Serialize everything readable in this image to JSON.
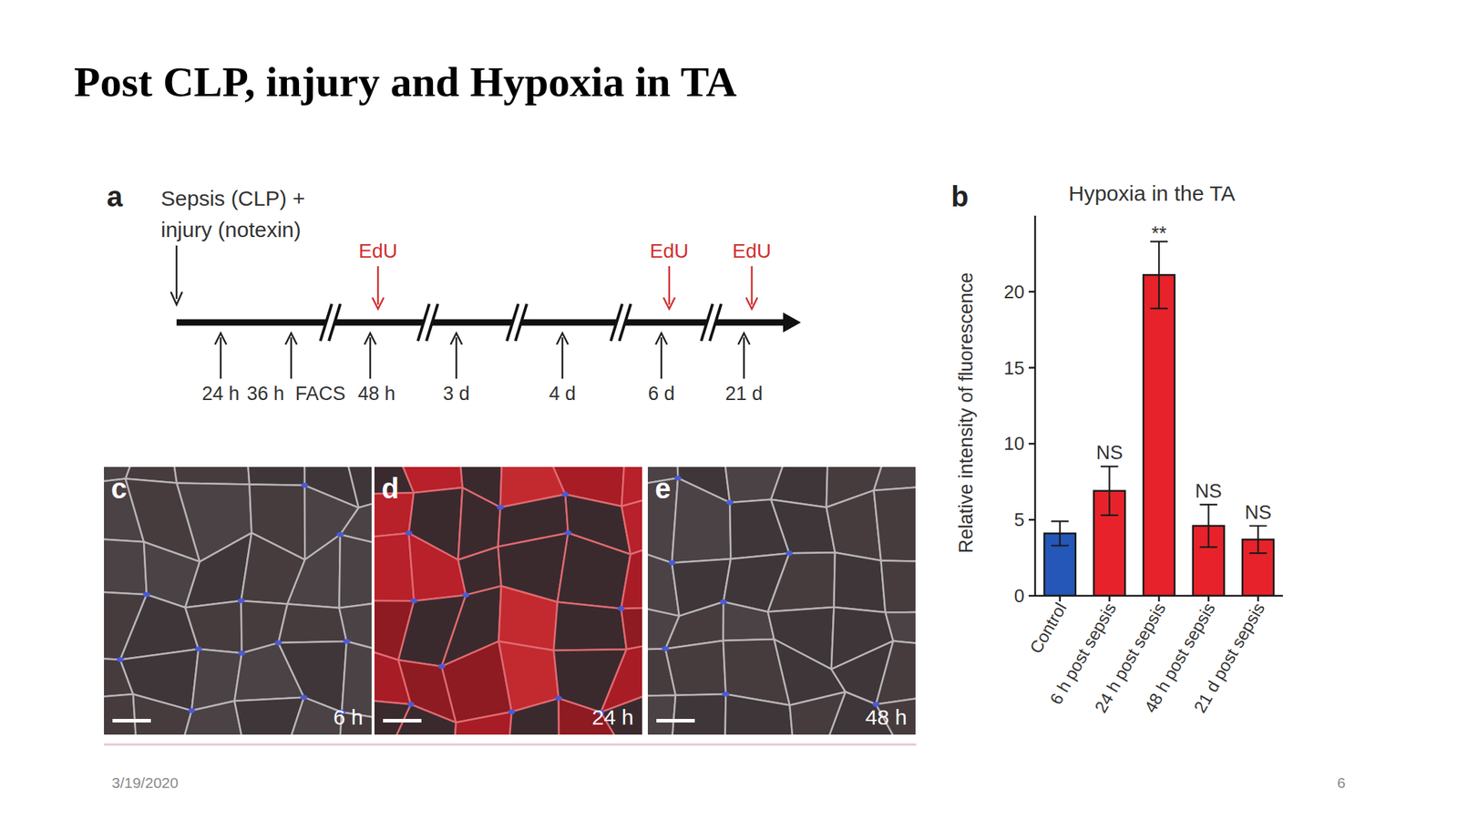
{
  "slide": {
    "title": "Post CLP, injury and Hypoxia in TA",
    "date": "3/19/2020",
    "page": "6",
    "chart_letter": "b"
  },
  "timeline": {
    "letter": "a",
    "start_label": [
      "Sepsis (CLP) +",
      "injury (notexin)"
    ],
    "timepoints": [
      "24 h",
      "36 h",
      "48 h",
      "3 d",
      "4 d",
      "6 d",
      "21 d"
    ],
    "facs": "FACS",
    "edu_labels": [
      "EdU",
      "EdU",
      "EdU"
    ],
    "edu_timepoints": [
      2,
      5,
      6
    ]
  },
  "images": [
    {
      "letter": "c",
      "time": "6 h"
    },
    {
      "letter": "d",
      "time": "24 h"
    },
    {
      "letter": "e",
      "time": "48 h"
    }
  ],
  "chart_data": {
    "type": "bar",
    "title": "Hypoxia in the TA",
    "y_label": "Relative intensity of fluorescence",
    "categories": [
      "Control",
      "6 h post sepsis",
      "24 h post sepsis",
      "48 h post sepsis",
      "21 d post sepsis"
    ],
    "values": [
      4.1,
      6.9,
      21.1,
      4.6,
      3.7
    ],
    "errors": [
      0.8,
      1.6,
      2.2,
      1.4,
      0.9
    ],
    "annotations": [
      null,
      "NS",
      "**",
      "NS",
      "NS"
    ],
    "colors": [
      "#2457b8",
      "#e8222a",
      "#e8222a",
      "#e8222a",
      "#e8222a"
    ],
    "ylim": [
      0,
      25
    ],
    "yticks": [
      0,
      5,
      10,
      15,
      20
    ],
    "grid": false
  }
}
